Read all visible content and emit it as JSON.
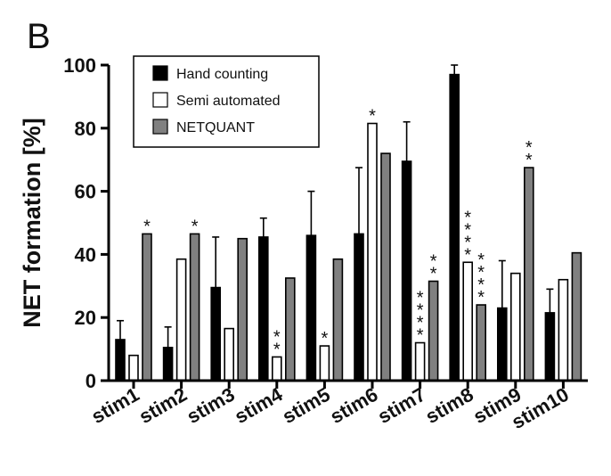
{
  "panel_label": "B",
  "chart_data": {
    "type": "bar",
    "title": "",
    "xlabel": "",
    "ylabel": "NET formation [%]",
    "ylim": [
      0,
      100
    ],
    "yticks": [
      0,
      20,
      40,
      60,
      80,
      100
    ],
    "categories": [
      "stim1",
      "stim2",
      "stim3",
      "stim4",
      "stim5",
      "stim6",
      "stim7",
      "stim8",
      "stim9",
      "stim10"
    ],
    "series": [
      {
        "name": "Hand counting",
        "color": "#000000",
        "values": [
          13,
          10.5,
          29.5,
          45.5,
          46,
          46.5,
          69.5,
          97,
          23,
          21.5
        ],
        "error": [
          6,
          6.5,
          16,
          6,
          14,
          21,
          12.5,
          3,
          15,
          7.5
        ],
        "stars": [
          0,
          0,
          0,
          0,
          0,
          0,
          0,
          0,
          0,
          0
        ]
      },
      {
        "name": "Semi automated",
        "color": "#ffffff",
        "values": [
          8,
          38.5,
          16.5,
          7.5,
          11,
          81.5,
          12,
          37.5,
          34,
          32
        ],
        "error": [
          0,
          0,
          0,
          0,
          0,
          0,
          0,
          0,
          0,
          0
        ],
        "stars": [
          0,
          0,
          0,
          2,
          1,
          1,
          4,
          4,
          0,
          0
        ]
      },
      {
        "name": "NETQUANT",
        "color": "#808080",
        "values": [
          46.5,
          46.5,
          45,
          32.5,
          38.5,
          72,
          31.5,
          24,
          67.5,
          40.5
        ],
        "error": [
          0,
          0,
          0,
          0,
          0,
          0,
          0,
          0,
          0,
          0
        ],
        "stars": [
          1,
          1,
          0,
          0,
          0,
          0,
          2,
          4,
          2,
          0
        ]
      }
    ],
    "legend_position": "top-left",
    "grid": false,
    "star_symbol": "*"
  }
}
